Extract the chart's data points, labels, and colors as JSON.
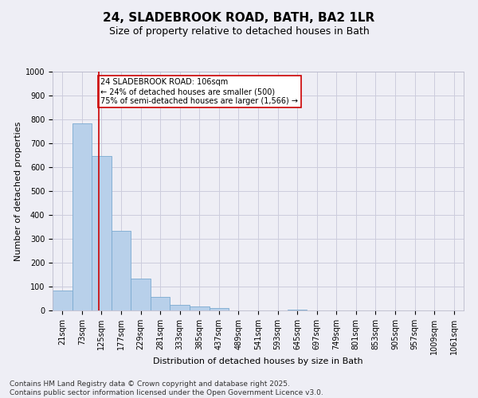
{
  "title_line1": "24, SLADEBROOK ROAD, BATH, BA2 1LR",
  "title_line2": "Size of property relative to detached houses in Bath",
  "xlabel": "Distribution of detached houses by size in Bath",
  "ylabel": "Number of detached properties",
  "categories": [
    "21sqm",
    "73sqm",
    "125sqm",
    "177sqm",
    "229sqm",
    "281sqm",
    "333sqm",
    "385sqm",
    "437sqm",
    "489sqm",
    "541sqm",
    "593sqm",
    "645sqm",
    "697sqm",
    "749sqm",
    "801sqm",
    "853sqm",
    "905sqm",
    "957sqm",
    "1009sqm",
    "1061sqm"
  ],
  "values": [
    82,
    783,
    648,
    335,
    132,
    57,
    22,
    18,
    10,
    0,
    0,
    0,
    5,
    0,
    0,
    0,
    0,
    0,
    0,
    0,
    0
  ],
  "bar_color": "#b8d0ea",
  "bar_edge_color": "#7aaad0",
  "vline_x": 1.85,
  "vline_color": "#cc0000",
  "annotation_text": "24 SLADEBROOK ROAD: 106sqm\n← 24% of detached houses are smaller (500)\n75% of semi-detached houses are larger (1,566) →",
  "annotation_box_color": "#cc0000",
  "annotation_bg": "#ffffff",
  "ylim": [
    0,
    1000
  ],
  "yticks": [
    0,
    100,
    200,
    300,
    400,
    500,
    600,
    700,
    800,
    900,
    1000
  ],
  "grid_color": "#ccccdd",
  "bg_color": "#eeeef5",
  "footer_line1": "Contains HM Land Registry data © Crown copyright and database right 2025.",
  "footer_line2": "Contains public sector information licensed under the Open Government Licence v3.0.",
  "title_fontsize": 11,
  "subtitle_fontsize": 9,
  "axis_label_fontsize": 8,
  "tick_fontsize": 7,
  "annotation_fontsize": 7,
  "footer_fontsize": 6.5
}
